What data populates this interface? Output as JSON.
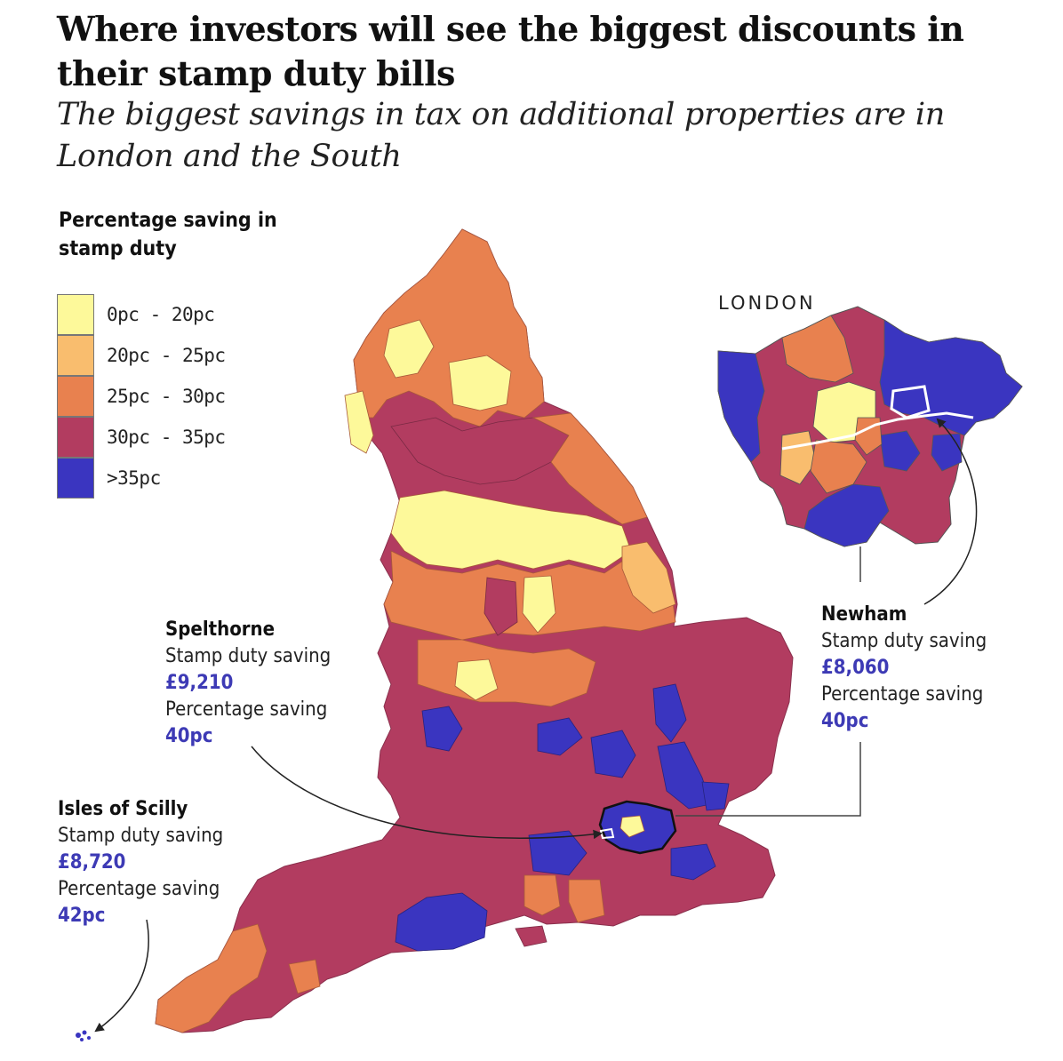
{
  "title": "Where investors will see the biggest discounts in their stamp duty bills",
  "subtitle": "The biggest savings in tax on additional properties are in London and the South",
  "legend": {
    "title": "Percentage saving in stamp duty",
    "items": [
      {
        "label": "0pc - 20pc",
        "color": "#fdf99a"
      },
      {
        "label": "20pc - 25pc",
        "color": "#f9bd6e"
      },
      {
        "label": "25pc - 30pc",
        "color": "#e8814f"
      },
      {
        "label": "30pc - 35pc",
        "color": "#b23c60"
      },
      {
        "label": ">35pc",
        "color": "#3a35c0"
      }
    ]
  },
  "inset_label": "LONDON",
  "callouts": {
    "spelthorne": {
      "name": "Spelthorne",
      "saving_label": "Stamp duty saving",
      "saving": "£9,210",
      "pct_label": "Percentage saving",
      "pct": "40pc"
    },
    "scilly": {
      "name": "Isles of Scilly",
      "saving_label": "Stamp duty saving",
      "saving": "£8,720",
      "pct_label": "Percentage saving",
      "pct": "42pc"
    },
    "newham": {
      "name": "Newham",
      "saving_label": "Stamp duty saving",
      "saving": "£8,060",
      "pct_label": "Percentage saving",
      "pct": "40pc"
    }
  }
}
